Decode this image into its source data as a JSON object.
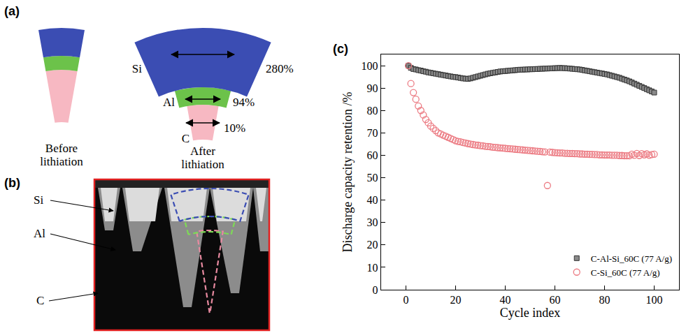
{
  "panel_a": {
    "label": "(a)",
    "before": "Before lithiation",
    "after": "After lithiation",
    "layers": [
      {
        "name": "Si",
        "expansion": "280%",
        "color": "#3b4db3"
      },
      {
        "name": "Al",
        "expansion": "94%",
        "color": "#6cc24a"
      },
      {
        "name": "C",
        "expansion": "10%",
        "color": "#f7b8c2"
      }
    ]
  },
  "panel_b": {
    "label": "(b)",
    "labels": [
      "Si",
      "Al",
      "C"
    ]
  },
  "panel_c": {
    "label": "(c)"
  },
  "chart_data": {
    "type": "scatter",
    "xlabel": "Cycle index",
    "ylabel": "Discharge capacity retention /%",
    "xlim": [
      -10,
      110
    ],
    "xticks": [
      0,
      20,
      40,
      60,
      80,
      100
    ],
    "ylim": [
      0,
      105
    ],
    "yticks": [
      0,
      10,
      20,
      30,
      40,
      50,
      60,
      70,
      80,
      90,
      100
    ],
    "grid": false,
    "legend": "bottom right",
    "x": [
      1,
      2,
      3,
      4,
      5,
      6,
      7,
      8,
      9,
      10,
      11,
      12,
      13,
      14,
      15,
      16,
      17,
      18,
      19,
      20,
      21,
      22,
      23,
      24,
      25,
      26,
      27,
      28,
      29,
      30,
      31,
      32,
      33,
      34,
      35,
      36,
      37,
      38,
      39,
      40,
      41,
      42,
      43,
      44,
      45,
      46,
      47,
      48,
      49,
      50,
      51,
      52,
      53,
      54,
      55,
      56,
      57,
      58,
      59,
      60,
      61,
      62,
      63,
      64,
      65,
      66,
      67,
      68,
      69,
      70,
      71,
      72,
      73,
      74,
      75,
      76,
      77,
      78,
      79,
      80,
      81,
      82,
      83,
      84,
      85,
      86,
      87,
      88,
      89,
      90,
      91,
      92,
      93,
      94,
      95,
      96,
      97,
      98,
      99,
      100
    ],
    "series": [
      {
        "name": "C-Al-Si_60C (77 A/g)",
        "color": "#8a8a8a",
        "marker": "square",
        "values": [
          100,
          99,
          98.5,
          98.3,
          98,
          97.8,
          97.5,
          97.3,
          97,
          96.8,
          96.6,
          96.4,
          96.2,
          96,
          95.8,
          95.6,
          95.4,
          95.2,
          95,
          94.9,
          94.7,
          94.5,
          94.3,
          94.2,
          94.1,
          94.3,
          94.6,
          94.9,
          95.2,
          95.5,
          95.8,
          96.1,
          96.4,
          96.6,
          96.8,
          97,
          97.2,
          97.4,
          97.5,
          97.6,
          97.7,
          97.8,
          97.9,
          98,
          98.1,
          98.2,
          98.2,
          98.3,
          98.3,
          98.4,
          98.4,
          98.5,
          98.5,
          98.6,
          98.6,
          98.7,
          98.7,
          98.8,
          98.8,
          98.9,
          98.9,
          99,
          98.9,
          98.9,
          98.8,
          98.7,
          98.6,
          98.5,
          98.4,
          98.3,
          98.1,
          97.9,
          97.7,
          97.5,
          97.3,
          97.1,
          96.9,
          96.7,
          96.5,
          96.3,
          96.1,
          95.8,
          95.5,
          95.2,
          94.9,
          94.6,
          94.2,
          93.8,
          93.4,
          93,
          92.5,
          92,
          91.5,
          91,
          90.5,
          90,
          89.5,
          89,
          88.5,
          88
        ]
      },
      {
        "name": "C-Si_60C (77 A/g)",
        "color": "#ec7c84",
        "marker": "circle-open",
        "values": [
          100,
          92,
          88,
          85,
          82,
          80,
          78,
          76,
          74.5,
          73,
          72,
          71,
          70,
          69.5,
          69,
          68.5,
          68,
          67.5,
          67,
          66.5,
          66.2,
          66,
          65.7,
          65.5,
          65.2,
          65,
          64.8,
          64.6,
          64.5,
          64.3,
          64.2,
          64,
          63.9,
          63.8,
          63.6,
          63.5,
          63.4,
          63.3,
          63.2,
          63.1,
          63,
          62.9,
          62.8,
          62.7,
          62.6,
          62.5,
          62.4,
          62.3,
          62.2,
          62.1,
          62,
          61.9,
          61.8,
          61.7,
          61.6,
          61.5,
          46.5,
          61.4,
          61.3,
          61.2,
          61.1,
          61,
          61,
          60.9,
          60.9,
          60.8,
          60.8,
          60.7,
          60.7,
          60.6,
          60.6,
          60.5,
          60.5,
          60.4,
          60.4,
          60.3,
          60.3,
          60.2,
          60.2,
          60.1,
          60.1,
          60.1,
          60,
          60,
          60,
          59.9,
          59.9,
          59.8,
          59.8,
          59.8,
          60.5,
          60,
          60.8,
          59.9,
          60.7,
          60.2,
          60.6,
          60,
          60.3,
          60.5
        ]
      }
    ]
  }
}
